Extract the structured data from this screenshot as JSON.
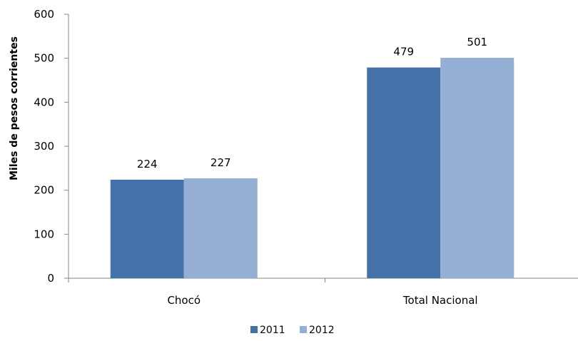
{
  "chart_data": {
    "type": "bar",
    "title": "",
    "xlabel": "",
    "ylabel": "Miles de pesos corrientes",
    "categories": [
      "Chocó",
      "Total Nacional"
    ],
    "series": [
      {
        "name": "2011",
        "values": [
          224,
          479
        ],
        "color": "#4472a8"
      },
      {
        "name": "2012",
        "values": [
          227,
          501
        ],
        "color": "#95aed4"
      }
    ],
    "ylim": [
      0,
      600
    ],
    "yticks": [
      0,
      100,
      200,
      300,
      400,
      500,
      600
    ],
    "grid": false,
    "legend": "bottom"
  }
}
